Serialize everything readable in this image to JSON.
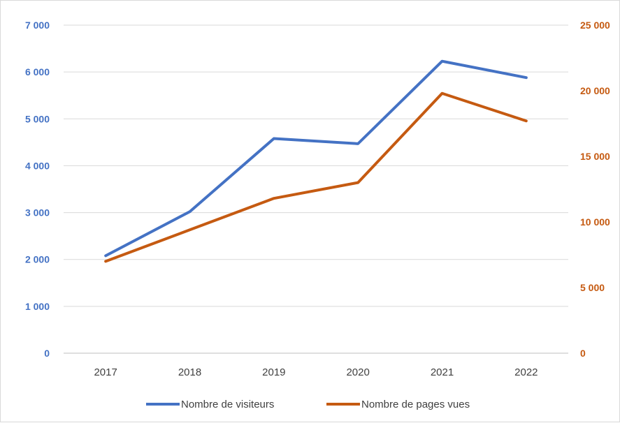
{
  "chart_data": {
    "type": "line",
    "categories": [
      "2017",
      "2018",
      "2019",
      "2020",
      "2021",
      "2022"
    ],
    "series": [
      {
        "name": "Nombre de visiteurs",
        "axis": "left",
        "color": "#4472c4",
        "values": [
          2080,
          3020,
          4580,
          4470,
          6230,
          5880
        ]
      },
      {
        "name": "Nombre de pages vues",
        "axis": "right",
        "color": "#c55a11",
        "values": [
          7000,
          9400,
          11800,
          13000,
          19800,
          17700
        ]
      }
    ],
    "y_left": {
      "min": 0,
      "max": 7000,
      "ticks": [
        "0",
        "1 000",
        "2 000",
        "3 000",
        "4 000",
        "5 000",
        "6 000",
        "7 000"
      ]
    },
    "y_right": {
      "min": 0,
      "max": 25000,
      "ticks": [
        "0",
        "5 000",
        "10 000",
        "15 000",
        "20 000",
        "25 000"
      ]
    },
    "grid": true,
    "legend_position": "bottom"
  }
}
